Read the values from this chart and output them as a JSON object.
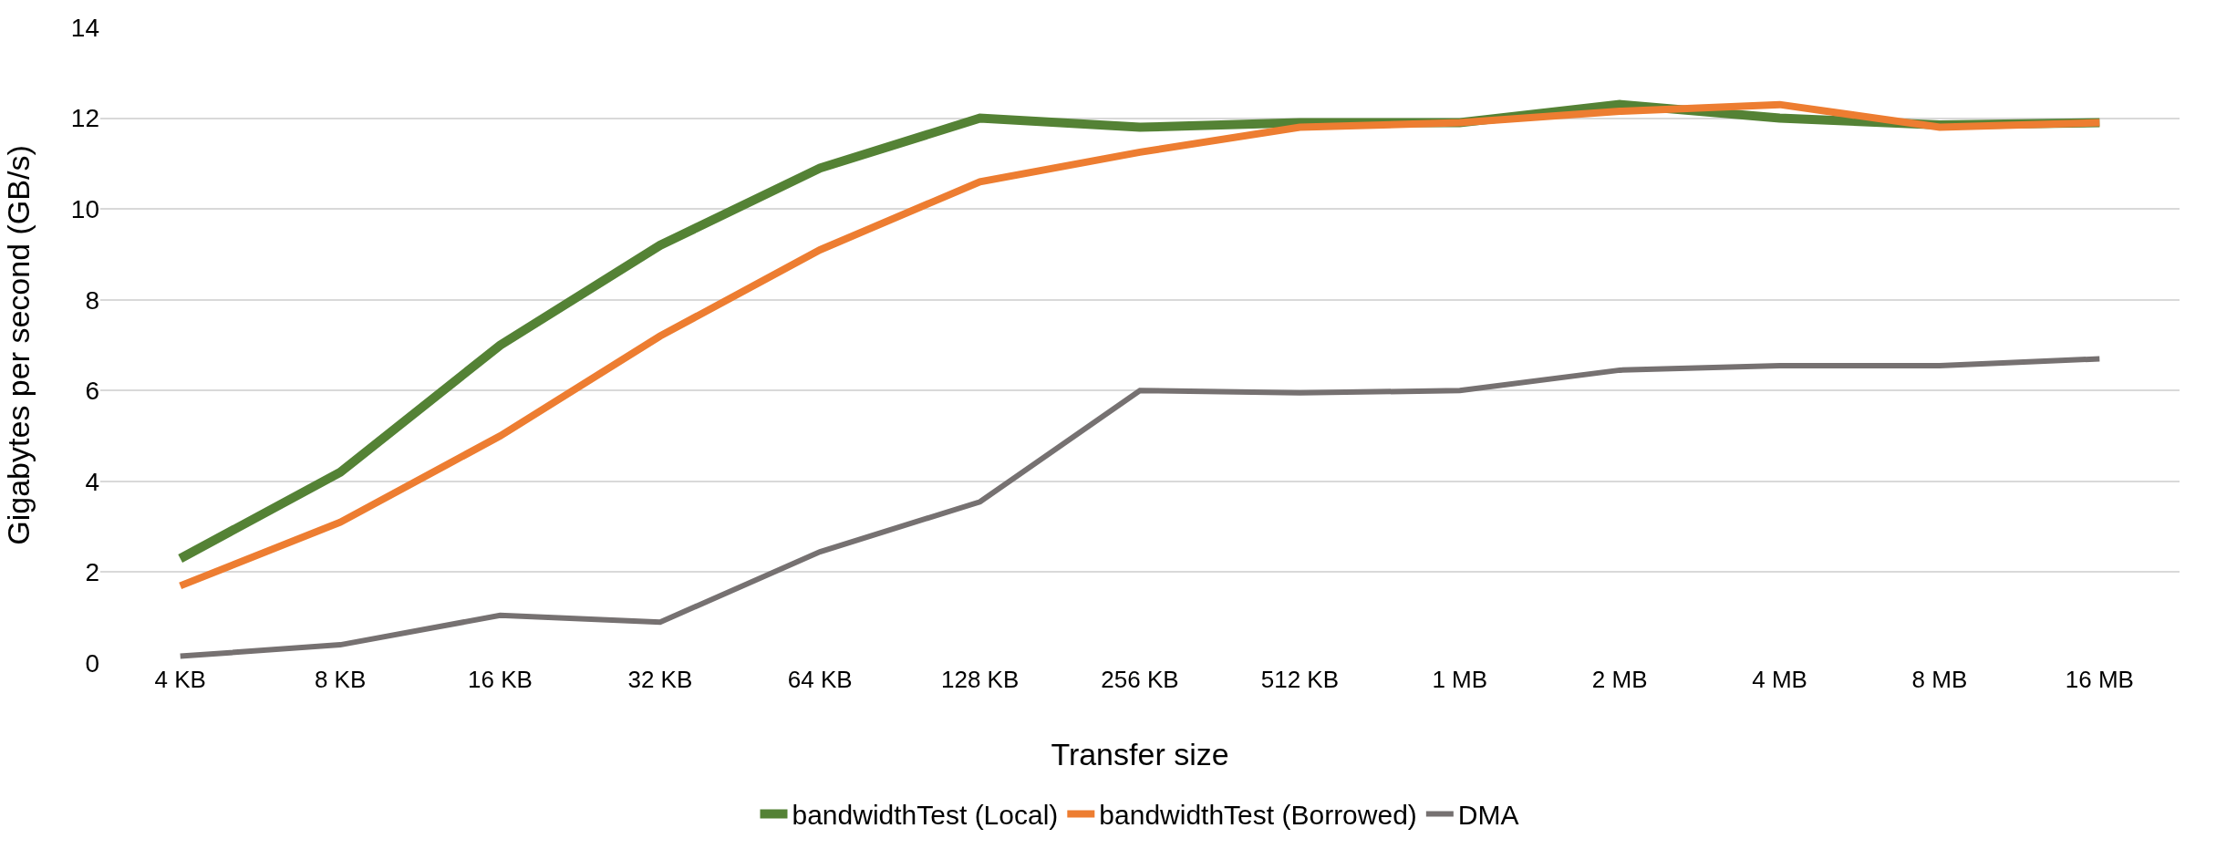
{
  "chart_data": {
    "type": "line",
    "xlabel": "Transfer size",
    "ylabel": "Gigabytes per second (GB/s)",
    "categories": [
      "4 KB",
      "8 KB",
      "16 KB",
      "32 KB",
      "64 KB",
      "128 KB",
      "256 KB",
      "512 KB",
      "1 MB",
      "2 MB",
      "4 MB",
      "8 MB",
      "16 MB"
    ],
    "series": [
      {
        "name": "bandwidthTest (Local)",
        "color": "#548235",
        "values": [
          2.3,
          4.2,
          7.0,
          9.2,
          10.9,
          12.0,
          11.8,
          11.9,
          11.9,
          12.3,
          12.0,
          11.85,
          11.9
        ]
      },
      {
        "name": "bandwidthTest (Borrowed)",
        "color": "#ed7d31",
        "values": [
          1.7,
          3.1,
          5.0,
          7.2,
          9.1,
          10.6,
          11.25,
          11.8,
          11.9,
          12.15,
          12.3,
          11.8,
          11.9
        ]
      },
      {
        "name": "DMA",
        "color": "#767171",
        "values": [
          0.15,
          0.4,
          1.05,
          0.9,
          2.45,
          3.55,
          6.0,
          5.95,
          6.0,
          6.45,
          6.55,
          6.55,
          6.7
        ]
      }
    ],
    "ylim": [
      0,
      14
    ],
    "yticks": [
      0,
      2,
      4,
      6,
      8,
      10,
      12,
      14
    ],
    "grid": "y",
    "legend": "bottom",
    "marker": "none",
    "line_style": "solid"
  }
}
